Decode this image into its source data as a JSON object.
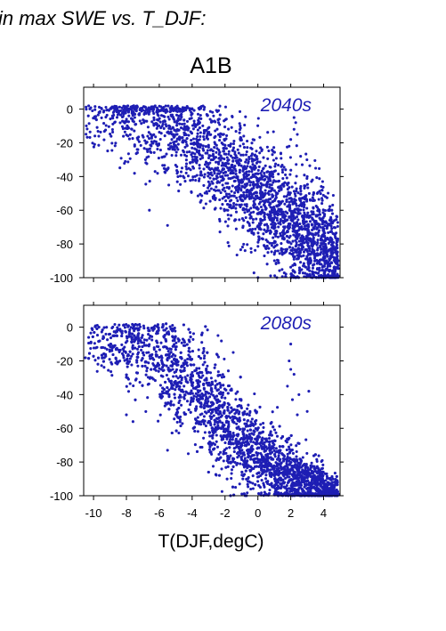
{
  "figure": {
    "heading": "in max SWE vs. T_DJF:",
    "scenario": "A1B",
    "xlabel": "T(DJF,degC)",
    "point_color": "#1e1eb4"
  },
  "chart_data": [
    {
      "type": "scatter",
      "title": "2040s",
      "xlabel": "T(DJF,degC)",
      "ylabel": "",
      "xlim": [
        -10.6,
        5.0
      ],
      "ylim": [
        -100,
        13
      ],
      "xticks": [
        -10,
        -8,
        -6,
        -4,
        -2,
        0,
        2,
        4
      ],
      "yticks": [
        0,
        -20,
        -40,
        -60,
        -80,
        -100
      ],
      "grid": false,
      "series": [
        {
          "color": "#1e1eb4",
          "trend": [
            [
              -10.4,
              -4
            ],
            [
              -9.5,
              -3
            ],
            [
              -8.5,
              -3
            ],
            [
              -7.5,
              -5
            ],
            [
              -6.5,
              -7
            ],
            [
              -5.5,
              -11
            ],
            [
              -4.5,
              -16
            ],
            [
              -3.5,
              -23
            ],
            [
              -2.5,
              -31
            ],
            [
              -1.5,
              -39
            ],
            [
              -0.5,
              -48
            ],
            [
              0.5,
              -56
            ],
            [
              1.5,
              -64
            ],
            [
              2.5,
              -72
            ],
            [
              3.5,
              -80
            ],
            [
              4.5,
              -86
            ]
          ],
          "points": [
            [
              2.2,
              -5
            ],
            [
              2.3,
              -8
            ],
            [
              2.2,
              -12
            ],
            [
              2.0,
              -18
            ],
            [
              1.9,
              -22
            ],
            [
              2.4,
              -15
            ],
            [
              2.6,
              -28
            ],
            [
              3.0,
              -40
            ],
            [
              3.4,
              -50
            ],
            [
              1.5,
              -36
            ],
            [
              1.8,
              -45
            ],
            [
              2.7,
              -33
            ],
            [
              3.9,
              -48
            ],
            [
              4.5,
              -60
            ],
            [
              4.8,
              -90
            ],
            [
              2.3,
              -100
            ],
            [
              3.0,
              -98
            ],
            [
              4.1,
              -96
            ],
            [
              -5.5,
              -69
            ],
            [
              -6.6,
              -60
            ],
            [
              -7.3,
              -24
            ],
            [
              -3.1,
              -50
            ]
          ]
        }
      ]
    },
    {
      "type": "scatter",
      "title": "2080s",
      "xlabel": "T(DJF,degC)",
      "ylabel": "",
      "xlim": [
        -10.6,
        5.0
      ],
      "ylim": [
        -100,
        13
      ],
      "xticks": [
        -10,
        -8,
        -6,
        -4,
        -2,
        0,
        2,
        4
      ],
      "yticks": [
        0,
        -20,
        -40,
        -60,
        -80,
        -100
      ],
      "grid": false,
      "series": [
        {
          "color": "#1e1eb4",
          "trend": [
            [
              -10.4,
              -12
            ],
            [
              -9.5,
              -9
            ],
            [
              -8.5,
              -9
            ],
            [
              -7.5,
              -11
            ],
            [
              -6.5,
              -15
            ],
            [
              -5.5,
              -22
            ],
            [
              -4.5,
              -31
            ],
            [
              -3.5,
              -41
            ],
            [
              -2.5,
              -52
            ],
            [
              -1.5,
              -62
            ],
            [
              -0.5,
              -72
            ],
            [
              0.5,
              -80
            ],
            [
              1.5,
              -87
            ],
            [
              2.5,
              -92
            ],
            [
              3.5,
              -96
            ],
            [
              4.5,
              -99
            ]
          ],
          "points": [
            [
              1.9,
              -20
            ],
            [
              2.0,
              -25
            ],
            [
              2.2,
              -28
            ],
            [
              1.8,
              -35
            ],
            [
              2.5,
              -40
            ],
            [
              2.1,
              -43
            ],
            [
              3.1,
              -38
            ],
            [
              3.0,
              -50
            ],
            [
              2.4,
              -52
            ],
            [
              2.0,
              -10
            ],
            [
              -1.5,
              -15
            ],
            [
              -2.5,
              -16
            ],
            [
              -8.0,
              -52
            ],
            [
              -7.6,
              -56
            ],
            [
              -5.5,
              -73
            ],
            [
              4.0,
              -92
            ],
            [
              4.6,
              -99
            ],
            [
              4.8,
              -100
            ]
          ]
        }
      ]
    }
  ]
}
